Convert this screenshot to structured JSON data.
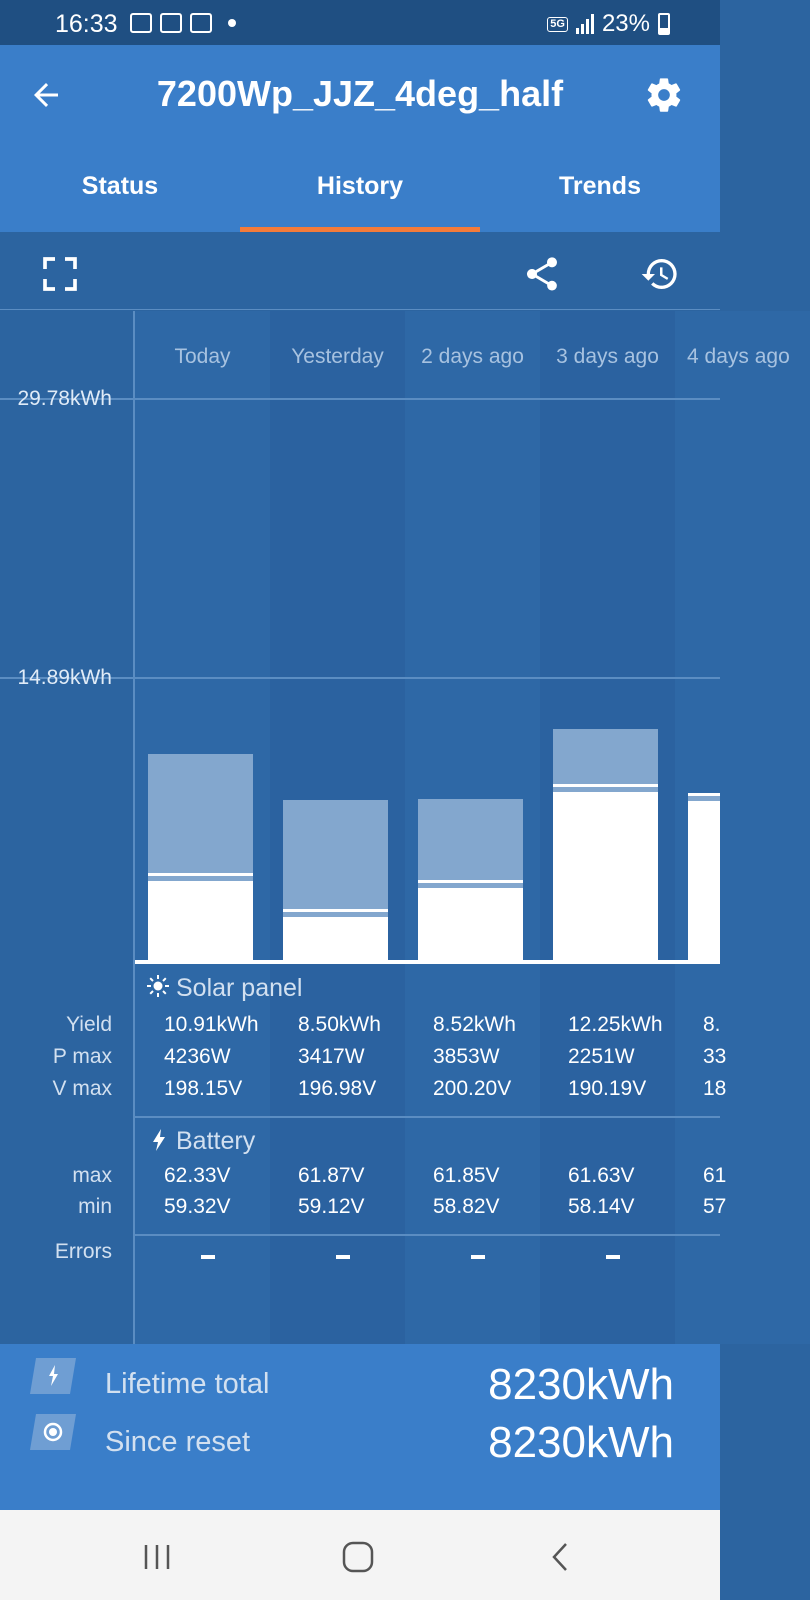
{
  "status_bar": {
    "time": "16:33",
    "network": "5G",
    "battery": "23%"
  },
  "app_bar": {
    "title": "7200Wp_JJZ_4deg_half"
  },
  "tabs": [
    {
      "label": "Status",
      "selected": false
    },
    {
      "label": "History",
      "selected": true
    },
    {
      "label": "Trends",
      "selected": false
    }
  ],
  "chart": {
    "y_ticks": [
      "29.78kWh",
      "14.89kWh"
    ],
    "columns": [
      "Today",
      "Yesterday",
      "2 days ago",
      "3 days ago",
      "4 days ago"
    ]
  },
  "chart_data": {
    "type": "bar",
    "categories": [
      "Today",
      "Yesterday",
      "2 days ago",
      "3 days ago",
      "4 days ago"
    ],
    "ylim": [
      0,
      29.78
    ],
    "series": [
      {
        "name": "Yield",
        "values": [
          10.91,
          8.5,
          8.52,
          12.25,
          8.8
        ]
      }
    ],
    "bottom_fill_kwh": [
      4.2,
      2.3,
      3.8,
      8.9,
      8.4
    ]
  },
  "solar_panel": {
    "title": "Solar panel",
    "rows": [
      {
        "label": "Yield",
        "values": [
          "10.91kWh",
          "8.50kWh",
          "8.52kWh",
          "12.25kWh",
          "8."
        ]
      },
      {
        "label": "P max",
        "values": [
          "4236W",
          "3417W",
          "3853W",
          "2251W",
          "33"
        ]
      },
      {
        "label": "V max",
        "values": [
          "198.15V",
          "196.98V",
          "200.20V",
          "190.19V",
          "18"
        ]
      }
    ]
  },
  "battery": {
    "title": "Battery",
    "rows": [
      {
        "label": "max",
        "values": [
          "62.33V",
          "61.87V",
          "61.85V",
          "61.63V",
          "61"
        ]
      },
      {
        "label": "min",
        "values": [
          "59.32V",
          "59.12V",
          "58.82V",
          "58.14V",
          "57"
        ]
      }
    ]
  },
  "errors": {
    "label": "Errors"
  },
  "totals": {
    "lifetime": {
      "label": "Lifetime total",
      "value": "8230kWh"
    },
    "since_reset": {
      "label": "Since reset",
      "value": "8230kWh"
    }
  },
  "colors": {
    "accent": "#f47b3a",
    "primary": "#3a7ec9",
    "dark": "#2c64a0"
  }
}
